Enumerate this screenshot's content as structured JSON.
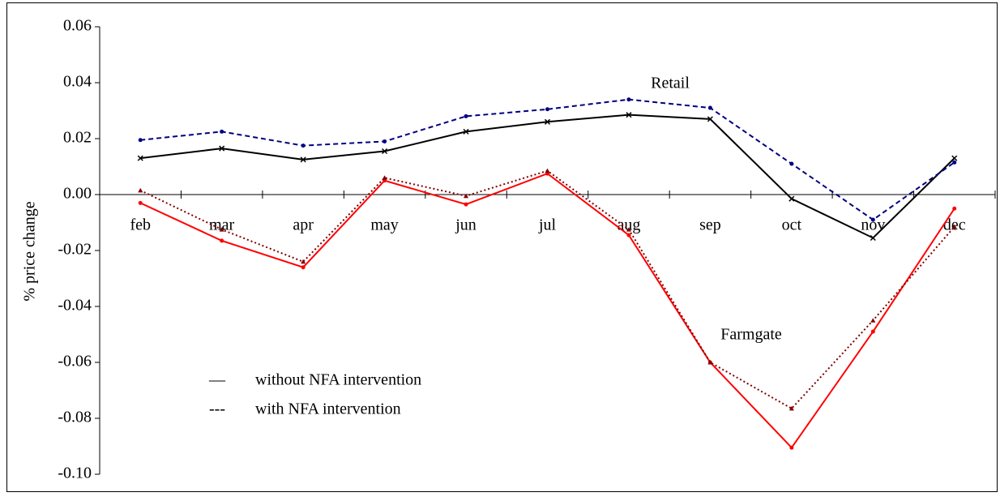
{
  "chart_data": {
    "type": "line",
    "y_label": "% price change",
    "categories": [
      "feb",
      "mar",
      "apr",
      "may",
      "jun",
      "jul",
      "aug",
      "sep",
      "oct",
      "nov",
      "dec"
    ],
    "ylim": [
      -0.1,
      0.06
    ],
    "yticks": [
      0.06,
      0.04,
      0.02,
      {
        "value": 0,
        "label": "0.00"
      },
      -0.02,
      -0.04,
      -0.06,
      -0.08,
      {
        "value": -0.1,
        "label": "-0.10"
      }
    ],
    "series": [
      {
        "color": "#000000",
        "style": "solid",
        "marker": "x",
        "values": [
          0.013,
          0.0165,
          0.0125,
          0.0155,
          0.0225,
          0.026,
          0.0285,
          0.027,
          -0.0015,
          -0.0155,
          0.013
        ]
      },
      {
        "color": "#000080",
        "style": "dashed",
        "marker": "dot",
        "values": [
          0.0195,
          0.0225,
          0.0175,
          0.019,
          0.028,
          0.0305,
          0.034,
          0.031,
          0.011,
          -0.009,
          0.0115
        ]
      },
      {
        "color": "#ff0000",
        "style": "solid",
        "marker": "dot",
        "values": [
          -0.003,
          -0.0165,
          -0.026,
          0.005,
          -0.0035,
          0.0075,
          -0.0145,
          -0.06,
          -0.0905,
          -0.049,
          -0.005
        ]
      },
      {
        "color": "#800000",
        "style": "dotted",
        "marker": "triangle",
        "values": [
          0.0015,
          -0.0125,
          -0.024,
          0.006,
          -0.0005,
          0.0085,
          -0.0125,
          -0.06,
          -0.0765,
          -0.045,
          -0.0115
        ]
      }
    ],
    "annotations": [
      "Retail",
      "Farmgate"
    ],
    "legend": [
      {
        "symbol": "—",
        "label": "without NFA intervention"
      },
      {
        "symbol": "---",
        "label": "with NFA intervention"
      }
    ]
  }
}
